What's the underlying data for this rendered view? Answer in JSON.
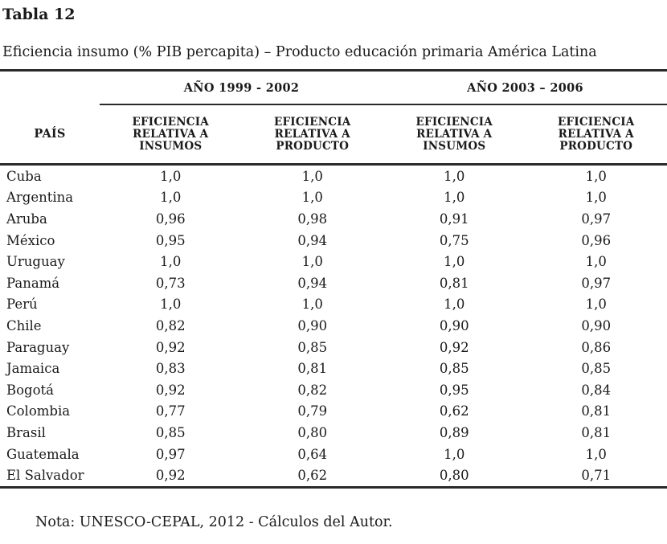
{
  "document": {
    "table_label": "Tabla 12",
    "table_title": "Eficiencia insumo (% PIB percapita) – Producto educación primaria América Latina",
    "note": "Nota: UNESCO-CEPAL, 2012 - Cálculos del Autor."
  },
  "table": {
    "country_header": "PAÍS",
    "groups": [
      {
        "label": "AÑO 1999 - 2002",
        "columns": [
          "EFICIENCIA RELATIVA A INSUMOS",
          "EFICIENCIA RELATIVA A PRODUCTO"
        ]
      },
      {
        "label": "AÑO 2003 – 2006",
        "columns": [
          "EFICIENCIA RELATIVA A INSUMOS",
          "EFICIENCIA RELATIVA A PRODUCTO"
        ]
      }
    ],
    "rows": [
      {
        "pais": "Cuba",
        "values": [
          "1,0",
          "1,0",
          "1,0",
          "1,0"
        ]
      },
      {
        "pais": "Argentina",
        "values": [
          "1,0",
          "1,0",
          "1,0",
          "1,0"
        ]
      },
      {
        "pais": "Aruba",
        "values": [
          "0,96",
          "0,98",
          "0,91",
          "0,97"
        ]
      },
      {
        "pais": "México",
        "values": [
          "0,95",
          "0,94",
          "0,75",
          "0,96"
        ]
      },
      {
        "pais": "Uruguay",
        "values": [
          "1,0",
          "1,0",
          "1,0",
          "1,0"
        ]
      },
      {
        "pais": "Panamá",
        "values": [
          "0,73",
          "0,94",
          "0,81",
          "0,97"
        ]
      },
      {
        "pais": "Perú",
        "values": [
          "1,0",
          "1,0",
          "1,0",
          "1,0"
        ]
      },
      {
        "pais": "Chile",
        "values": [
          "0,82",
          "0,90",
          "0,90",
          "0,90"
        ]
      },
      {
        "pais": "Paraguay",
        "values": [
          "0,92",
          "0,85",
          "0,92",
          "0,86"
        ]
      },
      {
        "pais": "Jamaica",
        "values": [
          "0,83",
          "0,81",
          "0,85",
          "0,85"
        ]
      },
      {
        "pais": "Bogotá",
        "values": [
          "0,92",
          "0,82",
          "0,95",
          "0,84"
        ]
      },
      {
        "pais": "Colombia",
        "values": [
          "0,77",
          "0,79",
          "0,62",
          "0,81"
        ]
      },
      {
        "pais": "Brasil",
        "values": [
          "0,85",
          "0,80",
          "0,89",
          "0,81"
        ]
      },
      {
        "pais": "Guatemala",
        "values": [
          "0,97",
          "0,64",
          "1,0",
          "1,0"
        ]
      },
      {
        "pais": "El Salvador",
        "values": [
          "0,92",
          "0,62",
          "0,80",
          "0,71"
        ]
      }
    ]
  },
  "colors": {
    "background": "#ffffff",
    "text": "#1a1a1a",
    "rule": "#2a2a2a"
  }
}
